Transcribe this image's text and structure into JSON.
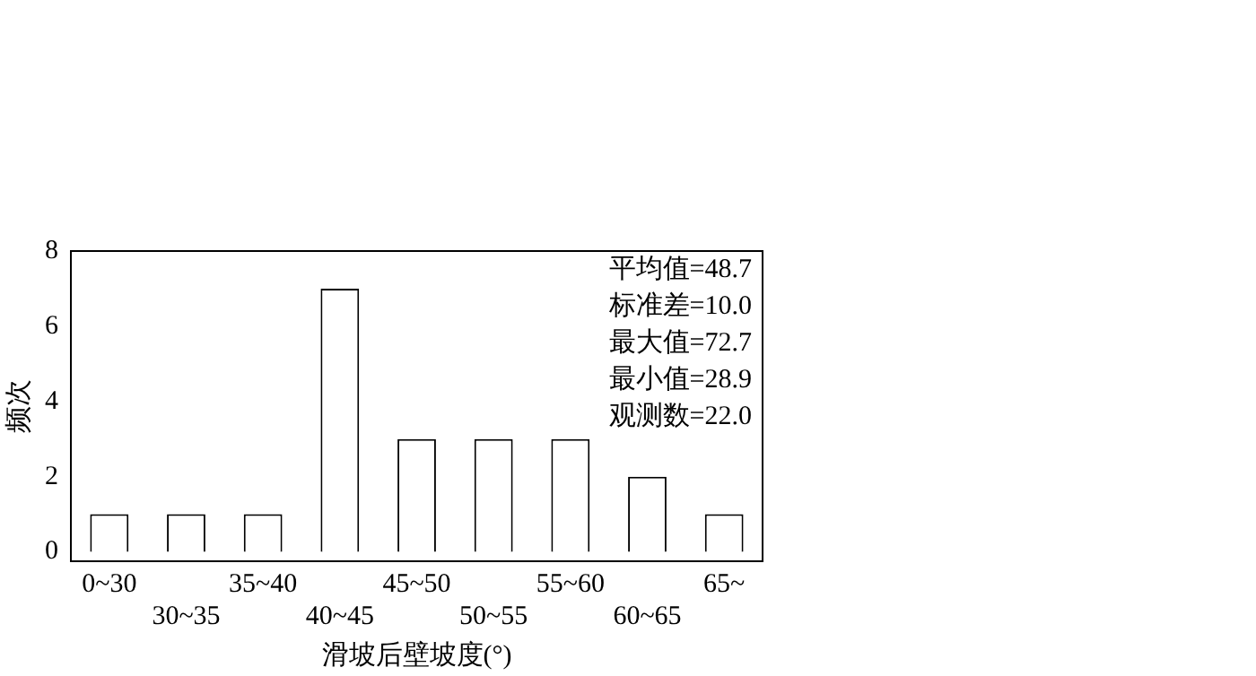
{
  "chart_data": {
    "type": "bar",
    "xlabel": "滑坡后壁坡度(°)",
    "ylabel": "频次",
    "categories": [
      "0~30",
      "30~35",
      "35~40",
      "40~45",
      "45~50",
      "50~55",
      "55~60",
      "60~65",
      "65~"
    ],
    "values": [
      1,
      1,
      1,
      7,
      3,
      3,
      3,
      2,
      1
    ],
    "color": "#ffffff",
    "ylim": [
      -0.25,
      8
    ],
    "yticks": [
      0,
      2,
      4,
      6,
      8
    ],
    "grid": false,
    "legend": false,
    "annotations": [
      "平均值=48.7",
      "标准差=10.0",
      "最大值=72.7",
      "最小值=28.9",
      "观测数=22.0"
    ]
  }
}
